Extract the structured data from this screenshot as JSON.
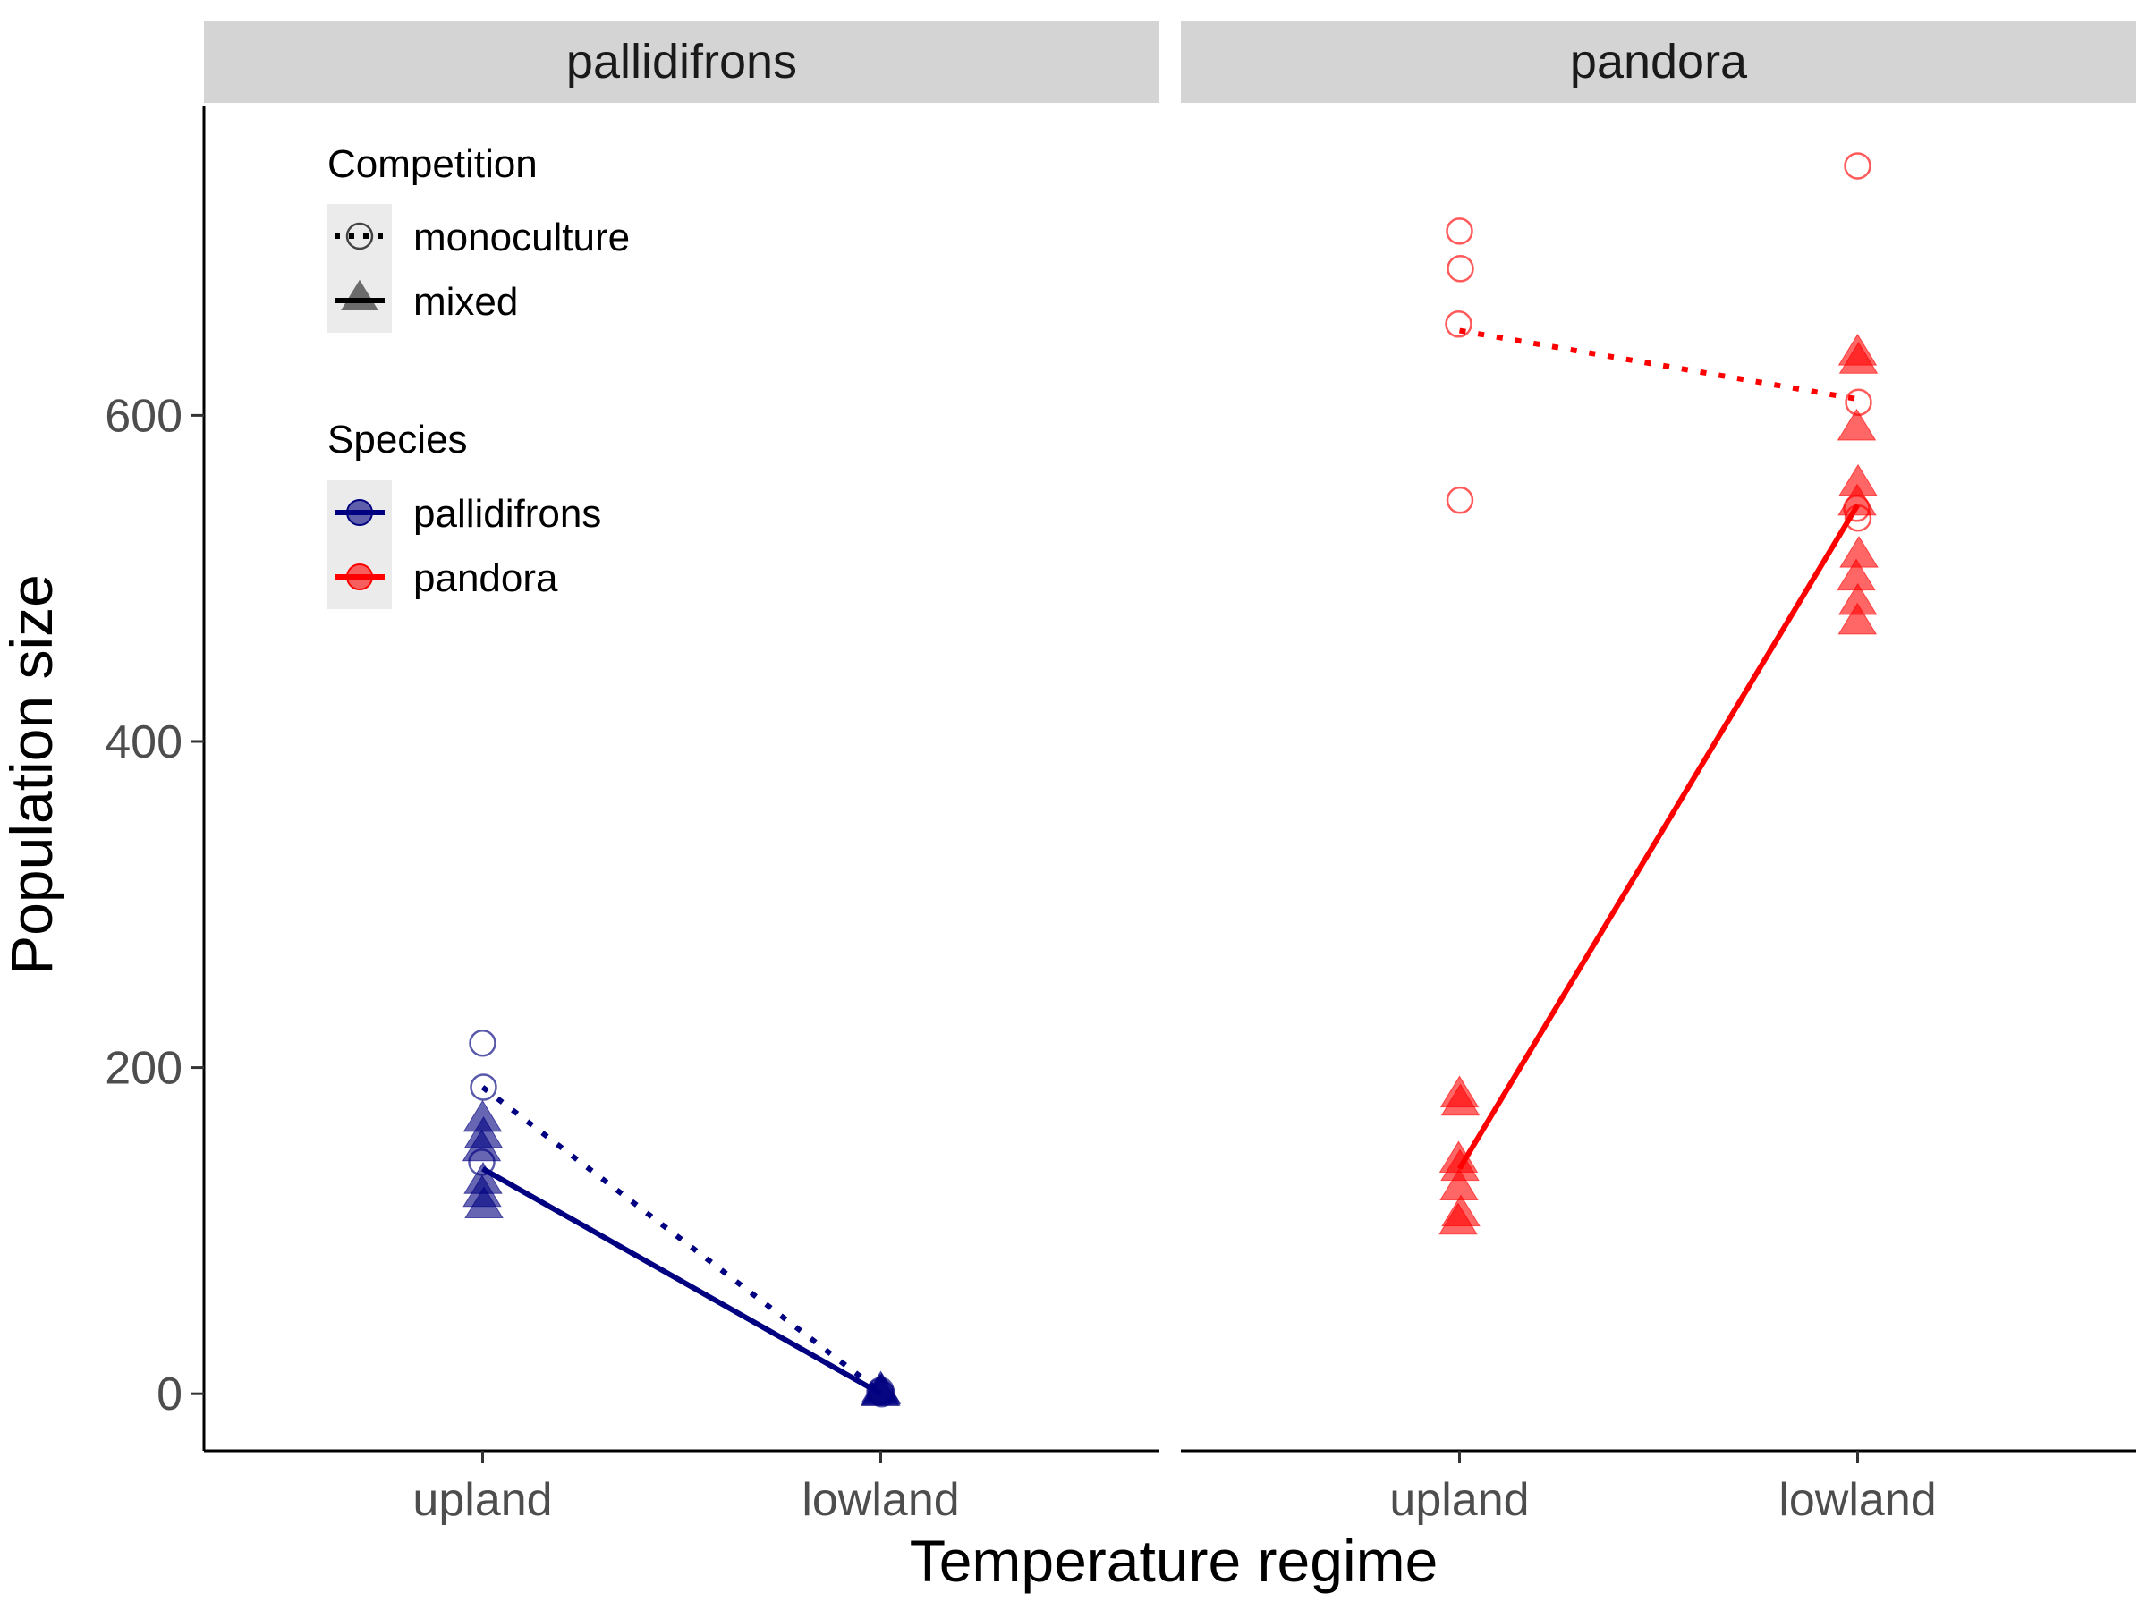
{
  "chart_data": {
    "type": "scatter",
    "xlabel": "Temperature regime",
    "ylabel": "Population size",
    "categories": [
      "upland",
      "lowland"
    ],
    "ylim": [
      -35,
      790
    ],
    "yticks": [
      0,
      200,
      400,
      600
    ],
    "grid": false,
    "colors": {
      "pallidifrons": "#000080",
      "pandora": "#ff0000"
    },
    "legend": {
      "placement": "top-left",
      "competition_title": "Competition",
      "competition_items": [
        {
          "label": "monoculture",
          "shape": "open-circle",
          "line": "dotted"
        },
        {
          "label": "mixed",
          "shape": "filled-triangle",
          "line": "solid"
        }
      ],
      "species_title": "Species",
      "species_items": [
        {
          "label": "pallidifrons"
        },
        {
          "label": "pandora"
        }
      ]
    },
    "panels": [
      {
        "strip": "pallidifrons",
        "species": "pallidifrons",
        "points": {
          "monoculture": {
            "upland": [
              215,
              188,
              142
            ],
            "lowland": [
              2,
              0,
              1
            ]
          },
          "mixed": {
            "upland": [
              168,
              158,
              150,
              130,
              122,
              115
            ],
            "lowland": [
              2,
              1,
              0,
              0
            ]
          }
        },
        "lines": {
          "monoculture": {
            "upland": 188,
            "lowland": 1
          },
          "mixed": {
            "upland": 138,
            "lowland": 0
          }
        }
      },
      {
        "strip": "pandora",
        "species": "pandora",
        "points": {
          "monoculture": {
            "upland": [
              713,
              690,
              656,
              548
            ],
            "lowland": [
              753,
              608,
              543,
              537
            ]
          },
          "mixed": {
            "upland": [
              183,
              178,
              143,
              138,
              126,
              110,
              105
            ],
            "lowland": [
              638,
              633,
              592,
              558,
              546,
              514,
              500,
              485,
              473
            ]
          }
        },
        "lines": {
          "monoculture": {
            "upland": 652,
            "lowland": 610
          },
          "mixed": {
            "upland": 138,
            "lowland": 545
          }
        }
      }
    ]
  }
}
